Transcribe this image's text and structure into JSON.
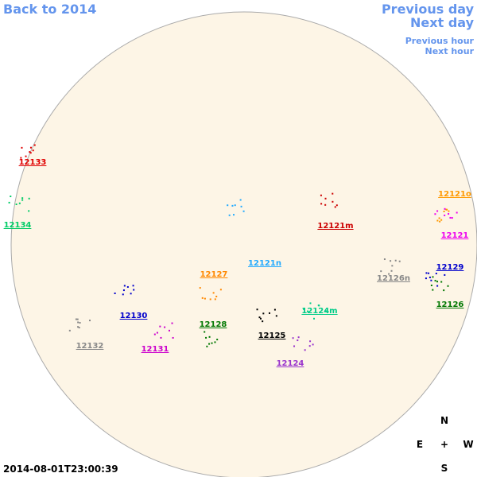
{
  "nav": {
    "back": "Back to 2014",
    "previous_day": "Previous day",
    "next_day": "Next day",
    "previous_hour": "Previous hour",
    "next_hour": "Next hour"
  },
  "timestamp": "2014-08-01T23:00:39",
  "compass": {
    "north": "N",
    "east": "E",
    "center": "+",
    "west": "W",
    "south": "S"
  },
  "regions": [
    "12133",
    "12134",
    "12121o",
    "12121",
    "12121m",
    "12121n",
    "12127",
    "12129",
    "12126n",
    "12126",
    "12130",
    "12128",
    "12124m",
    "12125",
    "12132",
    "12131",
    "12124"
  ]
}
